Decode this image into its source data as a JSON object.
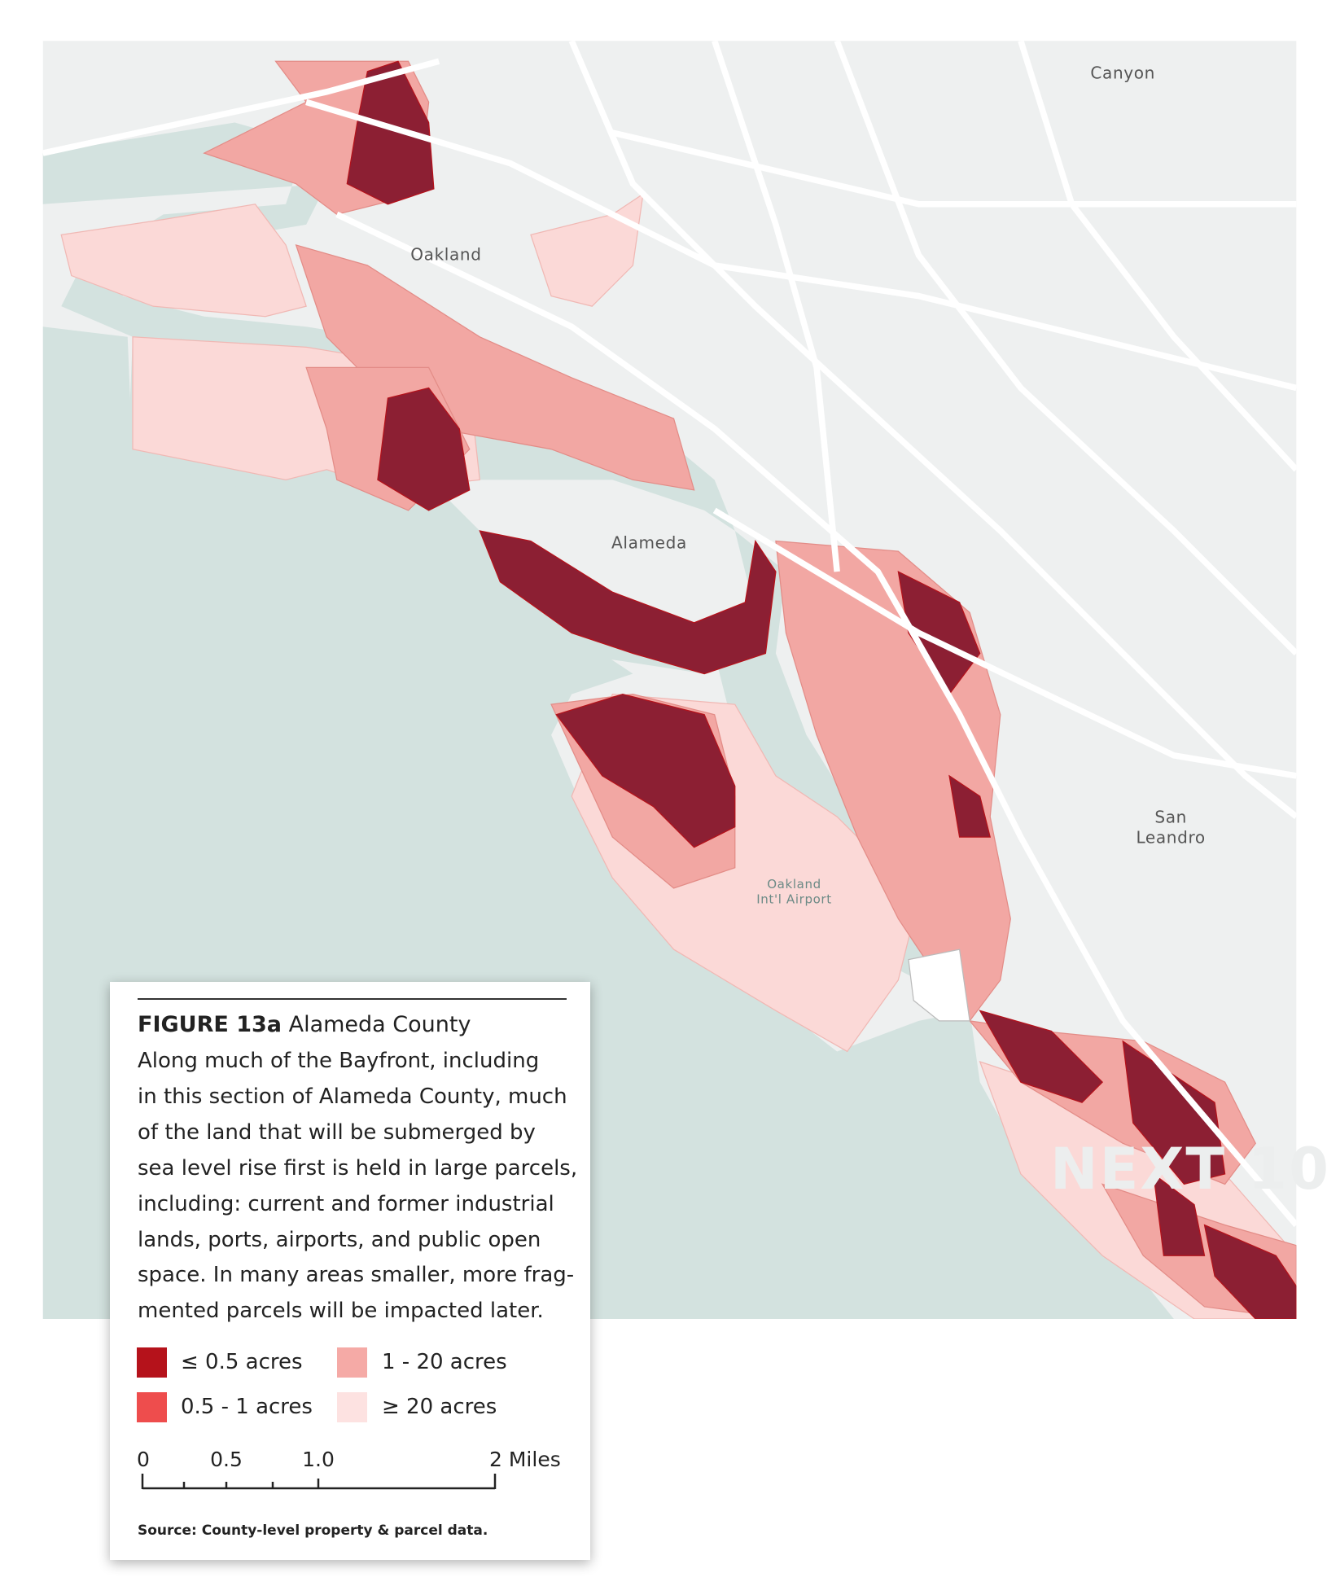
{
  "map": {
    "labels": {
      "canyon": "Canyon",
      "oakland": "Oakland",
      "alameda": "Alameda",
      "san_leandro_1": "San",
      "san_leandro_2": "Leandro",
      "airport_1": "Oakland",
      "airport_2": "Int'l Airport"
    }
  },
  "legend": {
    "figure": "FIGURE 13a",
    "title": "Alameda County",
    "lines": [
      "Along much of the Bayfront, including",
      "in this section of Alameda County, much",
      "of the land that will be submerged by",
      "sea level rise first is held in large parcels,",
      "including: current and former industrial",
      "lands, ports, airports, and public open",
      "space. In many areas smaller, more frag-",
      "mented parcels will be impacted later."
    ],
    "items": [
      {
        "label": "≤ 0.5 acres",
        "color": "#b5121b"
      },
      {
        "label": "0.5 - 1 acres",
        "color": "#ee4d4d"
      },
      {
        "label": "1 - 20 acres",
        "color": "#f5aaa6"
      },
      {
        "label": "≥ 20 acres",
        "color": "#fde2e1"
      }
    ],
    "scale": [
      "0",
      "0.5",
      "1.0",
      "2 Miles"
    ],
    "source": "Source: County-level property & parcel data."
  },
  "brand": "NEXT 10"
}
